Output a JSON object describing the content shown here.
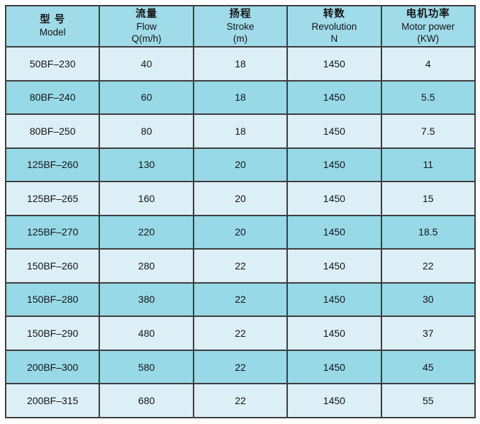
{
  "page": {
    "background": "#ffffff"
  },
  "table": {
    "colors": {
      "border": "#3d3d3d",
      "header-bg": "#a0dbe9",
      "row-dark": "#98d9e8",
      "row-light": "#dceff7",
      "text": "#141414"
    },
    "columns": [
      {
        "zh": "型 号",
        "en": "Model",
        "unit": ""
      },
      {
        "zh": "流量",
        "en": "Flow",
        "unit": "Q(m/h)"
      },
      {
        "zh": "扬程",
        "en": "Stroke",
        "unit": "(m)"
      },
      {
        "zh": "转数",
        "en": "Revolution",
        "unit": "N"
      },
      {
        "zh": "电机功率",
        "en": "Motor power",
        "unit": "(KW)"
      }
    ],
    "rows": [
      [
        "50BF–230",
        "40",
        "18",
        "1450",
        "4"
      ],
      [
        "80BF–240",
        "60",
        "18",
        "1450",
        "5.5"
      ],
      [
        "80BF–250",
        "80",
        "18",
        "1450",
        "7.5"
      ],
      [
        "125BF–260",
        "130",
        "20",
        "1450",
        "11"
      ],
      [
        "125BF–265",
        "160",
        "20",
        "1450",
        "15"
      ],
      [
        "125BF–270",
        "220",
        "20",
        "1450",
        "18.5"
      ],
      [
        "150BF–260",
        "280",
        "22",
        "1450",
        "22"
      ],
      [
        "150BF–280",
        "380",
        "22",
        "1450",
        "30"
      ],
      [
        "150BF–290",
        "480",
        "22",
        "1450",
        "37"
      ],
      [
        "200BF–300",
        "580",
        "22",
        "1450",
        "45"
      ],
      [
        "200BF–315",
        "680",
        "22",
        "1450",
        "55"
      ]
    ]
  }
}
